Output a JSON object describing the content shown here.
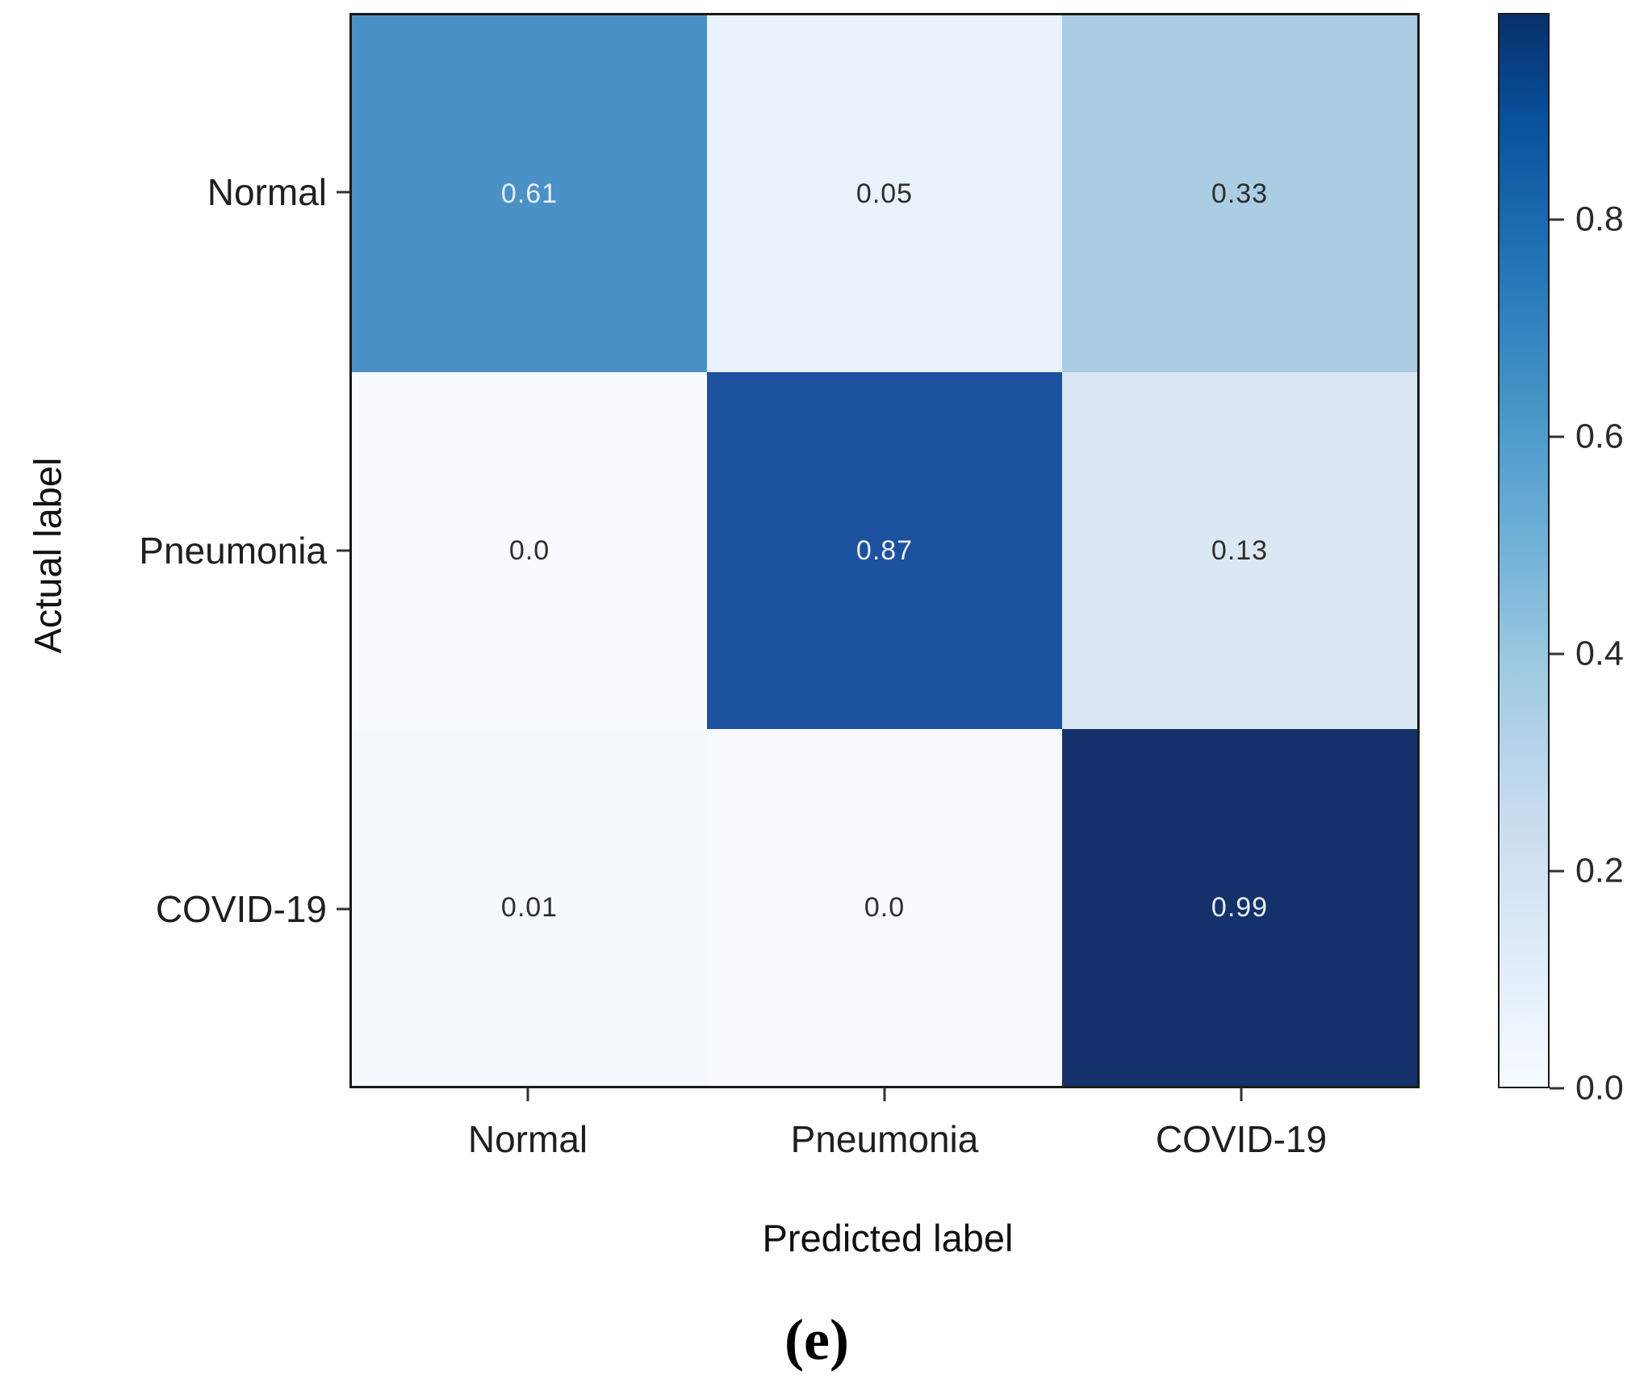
{
  "figure": {
    "caption": "(e)",
    "background": "#ffffff"
  },
  "chart_data": {
    "type": "heatmap",
    "title": "",
    "xlabel": "Predicted label",
    "ylabel": "Actual label",
    "x_categories": [
      "Normal",
      "Pneumonia",
      "COVID-19"
    ],
    "y_categories": [
      "Normal",
      "Pneumonia",
      "COVID-19"
    ],
    "values": [
      [
        0.61,
        0.05,
        0.33
      ],
      [
        0.0,
        0.87,
        0.13
      ],
      [
        0.01,
        0.0,
        0.99
      ]
    ],
    "value_labels": [
      [
        "0.61",
        "0.05",
        "0.33"
      ],
      [
        "0.0",
        "0.87",
        "0.13"
      ],
      [
        "0.01",
        "0.0",
        "0.99"
      ]
    ],
    "cell_colors": [
      [
        "#4a91c6",
        "#eaf2fb",
        "#abcde3"
      ],
      [
        "#f7fbff",
        "#1c519f",
        "#dbe8f4"
      ],
      [
        "#f4f9fe",
        "#f7fbff",
        "#14316b"
      ]
    ],
    "colormap": "Blues",
    "vmin": 0.0,
    "vmax": 0.99,
    "colorbar_ticks": [
      "0.8",
      "0.6",
      "0.4",
      "0.2",
      "0.0"
    ],
    "colorbar_tick_values": [
      0.8,
      0.6,
      0.4,
      0.2,
      0.0
    ],
    "grid": false,
    "legend_position": "right-colorbar",
    "axis_color": "#1a1a1a"
  }
}
